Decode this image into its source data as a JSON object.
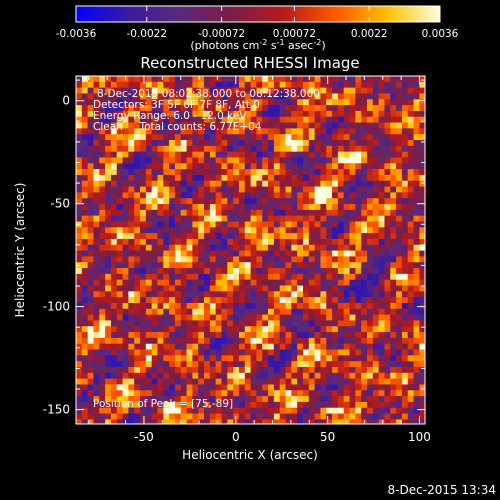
{
  "chart_data": {
    "type": "heatmap",
    "title": "Reconstructed RHESSI Image",
    "xlabel": "Heliocentric X (arcsec)",
    "ylabel": "Heliocentric Y (arcsec)",
    "xlim": [
      -87,
      103
    ],
    "ylim": [
      -157,
      12
    ],
    "x_ticks": [
      -50,
      0,
      50,
      100
    ],
    "y_ticks": [
      0,
      -50,
      -100,
      -150
    ],
    "colorbar": {
      "range": [
        -0.0036,
        0.0036
      ],
      "ticks": [
        "-0.0036",
        "-0.0022",
        "-0.00072",
        "0.00072",
        "0.0022",
        "0.0036"
      ],
      "tick_values": [
        -0.0036,
        -0.0022,
        -0.00072,
        0.00072,
        0.0022,
        0.0036
      ],
      "stops": [
        "#0000ff",
        "#3a1aa0",
        "#5a2a7a",
        "#7a1d4a",
        "#b71a1a",
        "#ff5a00",
        "#ffc000",
        "#ffffe0"
      ]
    },
    "colorbar_label_parts": [
      "(photons cm",
      "-2",
      " s",
      "-1",
      " asec",
      "-2",
      ")"
    ],
    "annotations": [
      "8-Dec-2015 08:02:38.000 to 08:12:38.000",
      "Detectors: 3F 5F 6F 7F 8F, Att 0",
      "Energy Range: 6.0 - 12.0 keV",
      "Clean     Total counts: 6.77E+04"
    ],
    "peak_label": "Position of Peak = [75,-89]",
    "peak_position": [
      75,
      -89
    ]
  },
  "footer": {
    "timestamp": "8-Dec-2015 13:34"
  }
}
